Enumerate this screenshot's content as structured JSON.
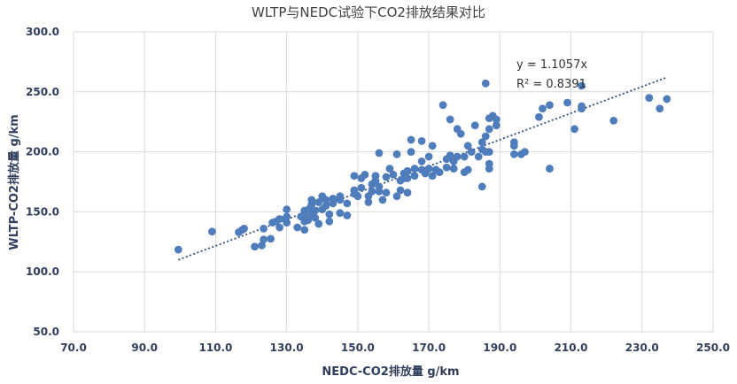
{
  "chart_data": {
    "type": "scatter",
    "title": "WLTP与NEDC试验下CO2排放结果对比",
    "xlabel": "NEDC-CO2排放量 g/km",
    "ylabel": "WLTP-CO2排放量 g/km",
    "xlim": [
      70,
      250
    ],
    "ylim": [
      50,
      300
    ],
    "xticks": [
      70,
      90,
      110,
      130,
      150,
      170,
      190,
      210,
      230,
      250
    ],
    "yticks": [
      50,
      100,
      150,
      200,
      250,
      300
    ],
    "xtick_labels": [
      "70.0",
      "90.0",
      "110.0",
      "130.0",
      "150.0",
      "170.0",
      "190.0",
      "210.0",
      "230.0",
      "250.0"
    ],
    "ytick_labels": [
      "50.0",
      "100.0",
      "150.0",
      "200.0",
      "250.0",
      "300.0"
    ],
    "grid": true,
    "colors": {
      "point": "#4f7dbb",
      "trendline": "#2f4f7f",
      "grid": "#d9d9d9",
      "tick_text": "#2f3e5c"
    },
    "trendline": {
      "slope": 1.1057,
      "intercept": 0,
      "x_range": [
        99.5,
        237
      ],
      "equation": "y = 1.1057x",
      "r2": "R² = 0.8391"
    },
    "series": [
      {
        "name": "CO2",
        "points": [
          [
            99.5,
            118.5
          ],
          [
            109,
            133.5
          ],
          [
            116.5,
            133
          ],
          [
            117.5,
            135
          ],
          [
            118,
            136
          ],
          [
            121,
            121
          ],
          [
            123,
            122
          ],
          [
            123.5,
            127
          ],
          [
            123.5,
            136
          ],
          [
            125.5,
            127.5
          ],
          [
            126,
            141
          ],
          [
            127,
            142
          ],
          [
            128,
            144
          ],
          [
            128,
            137
          ],
          [
            129.5,
            144
          ],
          [
            130,
            141
          ],
          [
            130,
            146
          ],
          [
            130,
            152
          ],
          [
            133,
            137
          ],
          [
            134,
            146
          ],
          [
            135,
            135
          ],
          [
            135,
            142
          ],
          [
            135,
            148
          ],
          [
            135,
            151
          ],
          [
            136,
            143
          ],
          [
            136.5,
            153
          ],
          [
            137,
            148
          ],
          [
            137,
            156
          ],
          [
            137,
            160
          ],
          [
            138,
            145
          ],
          [
            138,
            151
          ],
          [
            139,
            140
          ],
          [
            139,
            158
          ],
          [
            140,
            152
          ],
          [
            140,
            163
          ],
          [
            141,
            155
          ],
          [
            141,
            160
          ],
          [
            142,
            142
          ],
          [
            142,
            148
          ],
          [
            143,
            157
          ],
          [
            143,
            161
          ],
          [
            145,
            149
          ],
          [
            145,
            160
          ],
          [
            145,
            163
          ],
          [
            147,
            147
          ],
          [
            147,
            157
          ],
          [
            149,
            165
          ],
          [
            149,
            168
          ],
          [
            149,
            180
          ],
          [
            150,
            163
          ],
          [
            151,
            170
          ],
          [
            151,
            178
          ],
          [
            152,
            181
          ],
          [
            153,
            158
          ],
          [
            153,
            163
          ],
          [
            154,
            167
          ],
          [
            154,
            173
          ],
          [
            155,
            176
          ],
          [
            155,
            180
          ],
          [
            156,
            167
          ],
          [
            156,
            171
          ],
          [
            156,
            199
          ],
          [
            157,
            160
          ],
          [
            158,
            166
          ],
          [
            158,
            179
          ],
          [
            159,
            186
          ],
          [
            160,
            181
          ],
          [
            161,
            163
          ],
          [
            161,
            198
          ],
          [
            162,
            168
          ],
          [
            162,
            176
          ],
          [
            163,
            178
          ],
          [
            163,
            182
          ],
          [
            164,
            166
          ],
          [
            164,
            178
          ],
          [
            164,
            184
          ],
          [
            165,
            200
          ],
          [
            165,
            210
          ],
          [
            166,
            180
          ],
          [
            166,
            186
          ],
          [
            168,
            185
          ],
          [
            168,
            192
          ],
          [
            168,
            209
          ],
          [
            169,
            182
          ],
          [
            170,
            186
          ],
          [
            170,
            196
          ],
          [
            171,
            205
          ],
          [
            171,
            180
          ],
          [
            172,
            185
          ],
          [
            173,
            183
          ],
          [
            174,
            239
          ],
          [
            175,
            187
          ],
          [
            175,
            194
          ],
          [
            176,
            227
          ],
          [
            176,
            197
          ],
          [
            177,
            186
          ],
          [
            177,
            192
          ],
          [
            178,
            196
          ],
          [
            178,
            219
          ],
          [
            179,
            215
          ],
          [
            180,
            183
          ],
          [
            180,
            196
          ],
          [
            181,
            205
          ],
          [
            181,
            185
          ],
          [
            182,
            200
          ],
          [
            183,
            222
          ],
          [
            184,
            196
          ],
          [
            185,
            202
          ],
          [
            185,
            208
          ],
          [
            185,
            171
          ],
          [
            186,
            257
          ],
          [
            186,
            213
          ],
          [
            186,
            200
          ],
          [
            187,
            190
          ],
          [
            187,
            186
          ],
          [
            187,
            200
          ],
          [
            187,
            219
          ],
          [
            187,
            228
          ],
          [
            188,
            230
          ],
          [
            189,
            227
          ],
          [
            189,
            222
          ],
          [
            194,
            198
          ],
          [
            194,
            205
          ],
          [
            194,
            208
          ],
          [
            196,
            198
          ],
          [
            197,
            200
          ],
          [
            201,
            229
          ],
          [
            202,
            236
          ],
          [
            204,
            186
          ],
          [
            204,
            239
          ],
          [
            209,
            241
          ],
          [
            211,
            219
          ],
          [
            213,
            255
          ],
          [
            213,
            236
          ],
          [
            213,
            238
          ],
          [
            222,
            226
          ],
          [
            232,
            245
          ],
          [
            235,
            236
          ],
          [
            237,
            244
          ]
        ]
      }
    ]
  }
}
